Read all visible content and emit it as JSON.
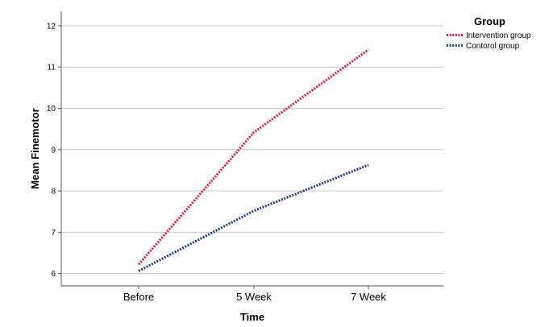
{
  "chart_data": {
    "type": "line",
    "xlabel": "Time",
    "ylabel": "Mean Finemotor",
    "categories": [
      "Before",
      "5 Week",
      "7 Week"
    ],
    "yticks": [
      6,
      7,
      8,
      9,
      10,
      11,
      12
    ],
    "ylim": [
      5.7,
      12.35
    ],
    "grid": true,
    "legend": {
      "title": "Group",
      "position": "top-right"
    },
    "series": [
      {
        "name": "Intervention group",
        "values": [
          6.22,
          9.42,
          11.42
        ],
        "color": "#e0163d",
        "style": "dotted"
      },
      {
        "name": "Contorol group",
        "values": [
          6.06,
          7.52,
          8.63
        ],
        "color": "#1e3a7a",
        "style": "dotted"
      }
    ]
  }
}
